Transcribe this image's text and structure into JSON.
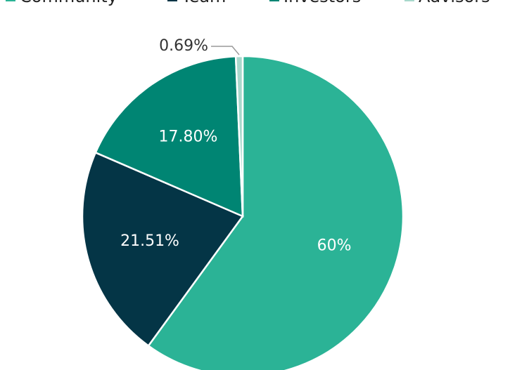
{
  "chart_data": {
    "type": "pie",
    "categories": [
      "Community",
      "Team",
      "Investors",
      "Advisors"
    ],
    "values": [
      60,
      21.51,
      17.8,
      0.69
    ],
    "value_labels": [
      "60%",
      "21.51%",
      "17.80%",
      "0.69%"
    ],
    "colors": [
      "#2bb396",
      "#043546",
      "#008573",
      "#a8d8cc"
    ],
    "legend": "top"
  }
}
